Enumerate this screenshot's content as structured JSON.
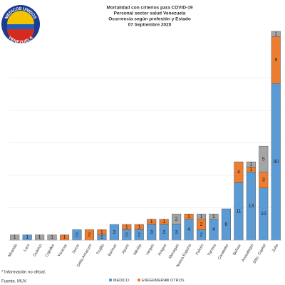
{
  "chart_data": {
    "type": "bar",
    "stacked": true,
    "logo": {
      "top": "MEDICOS UNIDOS",
      "bottom": "VENEZUELA"
    },
    "title": [
      "Mortalidad con criterios para COVID-19",
      "Personal sector salud Venezuela",
      "Ocurrencia según profesión y Estado",
      "07 Septiembre 2020"
    ],
    "categories": [
      "Miranda",
      "Lara",
      "Guárico",
      "Cojedes",
      "Yaracuy",
      "Sucre",
      "Delta Amacuro",
      "Trujillo",
      "Barinas",
      "Apure",
      "Mérida",
      "Vargas",
      "Aragua",
      "Monagas",
      "Nueva Esparta",
      "Falcón",
      "Táchira",
      "Carabobo",
      "Bolívar",
      "Anzoátegui",
      "Dtto. Capital",
      "Zulia"
    ],
    "series": [
      {
        "name": "MEDICO",
        "color": "#5b9bd5",
        "values": [
          0,
          1,
          0,
          0,
          0,
          2,
          0,
          1,
          3,
          2,
          2,
          3,
          3,
          3,
          4,
          2,
          4,
          6,
          11,
          13,
          10,
          30
        ]
      },
      {
        "name": "ENFERMERA",
        "color": "#ed7d31",
        "values": [
          0,
          0,
          0,
          0,
          1,
          0,
          2,
          1,
          0,
          1,
          1,
          1,
          1,
          0,
          1,
          2,
          0,
          0,
          4,
          1,
          3,
          9
        ]
      },
      {
        "name": "OTROS",
        "color": "#a5a5a5",
        "values": [
          1,
          0,
          1,
          1,
          0,
          0,
          0,
          0,
          0,
          0,
          0,
          0,
          0,
          2,
          0,
          1,
          1,
          0,
          0,
          1,
          5,
          1
        ]
      }
    ],
    "footnotes": [
      "* Información no oficial.",
      "Fuente. MUV"
    ]
  }
}
